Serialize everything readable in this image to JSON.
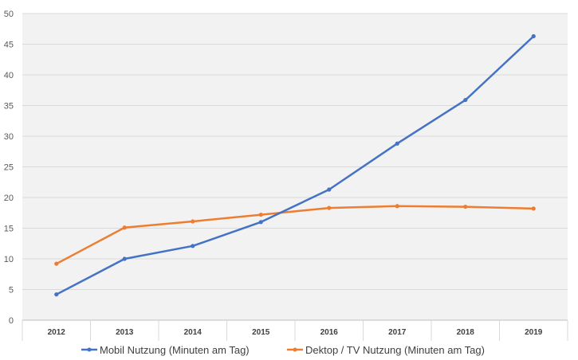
{
  "chart_data": {
    "type": "line",
    "categories": [
      "2012",
      "2013",
      "2014",
      "2015",
      "2016",
      "2017",
      "2018",
      "2019"
    ],
    "series": [
      {
        "name": "Mobil Nutzung (Minuten am Tag)",
        "color": "#4472c4",
        "values": [
          4.2,
          10.0,
          12.1,
          16.0,
          21.3,
          28.8,
          35.9,
          46.3
        ]
      },
      {
        "name": "Dektop / TV Nutzung (Minuten am Tag)",
        "color": "#ed7d31",
        "values": [
          9.2,
          15.1,
          16.1,
          17.2,
          18.3,
          18.6,
          18.5,
          18.2
        ]
      }
    ],
    "ylim": [
      0,
      50
    ],
    "yticks": [
      "0",
      "5",
      "10",
      "15",
      "20",
      "25",
      "30",
      "35",
      "40",
      "45",
      "50"
    ],
    "grid": true,
    "legend_position": "bottom",
    "plot_background": "#f2f2f2"
  }
}
